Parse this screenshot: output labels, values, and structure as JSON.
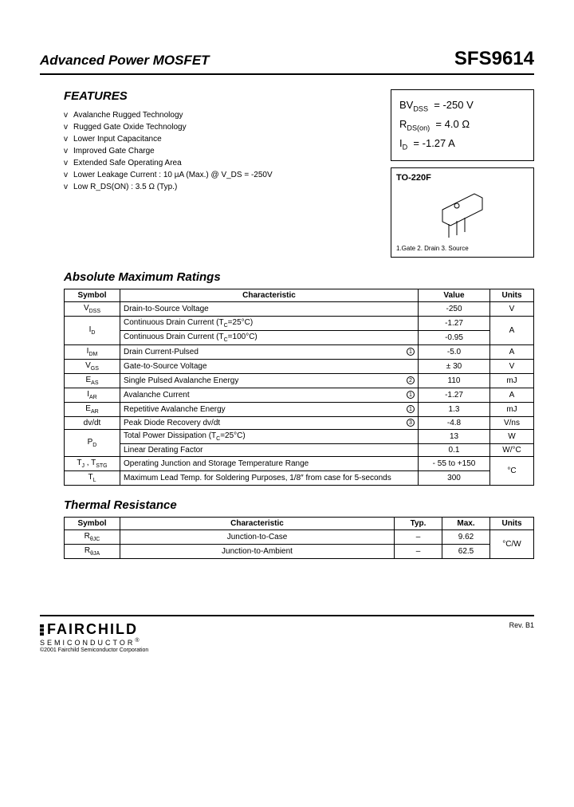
{
  "header": {
    "left": "Advanced Power MOSFET",
    "right": "SFS9614"
  },
  "features": {
    "title": "FEATURES",
    "bullet_glyph": "v",
    "items": [
      "Avalanche Rugged Technology",
      "Rugged Gate Oxide Technology",
      "Lower Input Capacitance",
      "Improved Gate Charge",
      "Extended Safe Operating Area",
      "Lower Leakage Current : 10 µA (Max.) @ V_DS = -250V",
      "Low R_DS(ON) : 3.5 Ω (Typ.)"
    ]
  },
  "spec_box": {
    "lines": [
      {
        "label_html": "BV<sub>DSS</sub>",
        "value": "= -250 V"
      },
      {
        "label_html": "R<sub>DS(on)</sub>",
        "value": "= 4.0 Ω"
      },
      {
        "label_html": "I<sub>D</sub>",
        "value": "= -1.27 A"
      }
    ]
  },
  "package": {
    "name": "TO-220F",
    "pins": "1.Gate  2. Drain  3. Source"
  },
  "abs_max": {
    "title": "Absolute Maximum Ratings",
    "headers": [
      "Symbol",
      "Characteristic",
      "Value",
      "Units"
    ],
    "rows": [
      {
        "sym_html": "V<sub>DSS</sub>",
        "char": "Drain-to-Source Voltage",
        "val": "-250",
        "unit": "V"
      },
      {
        "sym_html": "I<sub>D</sub>",
        "rowspan_sym": 2,
        "char_html": "Continuous Drain Current (T<sub>C</sub>=25°C)",
        "val": "-1.27",
        "unit": "A",
        "rowspan_unit": 2
      },
      {
        "char_html": "Continuous Drain Current (T<sub>C</sub>=100°C)",
        "val": "-0.95"
      },
      {
        "sym_html": "I<sub>DM</sub>",
        "char": "Drain Current-Pulsed",
        "note": "1",
        "val": "-5.0",
        "unit": "A"
      },
      {
        "sym_html": "V<sub>GS</sub>",
        "char": "Gate-to-Source Voltage",
        "val": "± 30",
        "unit": "V"
      },
      {
        "sym_html": "E<sub>AS</sub>",
        "char": "Single Pulsed Avalanche Energy",
        "note": "2",
        "val": "110",
        "unit": "mJ"
      },
      {
        "sym_html": "I<sub>AR</sub>",
        "char": "Avalanche Current",
        "note": "1",
        "val": "-1.27",
        "unit": "A"
      },
      {
        "sym_html": "E<sub>AR</sub>",
        "char": "Repetitive Avalanche Energy",
        "note": "1",
        "val": "1.3",
        "unit": "mJ"
      },
      {
        "sym_html": "dv/dt",
        "char": "Peak Diode Recovery dv/dt",
        "note": "3",
        "val": "-4.8",
        "unit": "V/ns"
      },
      {
        "sym_html": "P<sub>D</sub>",
        "rowspan_sym": 2,
        "char_html": "Total Power Dissipation (T<sub>C</sub>=25°C)",
        "val": "13",
        "unit": "W"
      },
      {
        "char": "Linear Derating Factor",
        "val": "0.1",
        "unit_html": "W/°C"
      },
      {
        "sym_html": "T<sub>J</sub> , T<sub>STG</sub>",
        "char": "Operating Junction and Storage Temperature Range",
        "val": "- 55 to +150",
        "unit_html": "°C",
        "rowspan_unit": 2
      },
      {
        "sym_html": "T<sub>L</sub>",
        "char": "Maximum Lead Temp. for Soldering Purposes, 1/8″ from case for 5-seconds",
        "val": "300"
      }
    ]
  },
  "thermal": {
    "title": "Thermal Resistance",
    "headers": [
      "Symbol",
      "Characteristic",
      "Typ.",
      "Max.",
      "Units"
    ],
    "rows": [
      {
        "sym_html": "R<sub>θJC</sub>",
        "char": "Junction-to-Case",
        "typ": "–",
        "max": "9.62",
        "unit_html": "°C/W",
        "rowspan_unit": 2
      },
      {
        "sym_html": "R<sub>θJA</sub>",
        "char": "Junction-to-Ambient",
        "typ": "–",
        "max": "62.5"
      }
    ]
  },
  "footer": {
    "brand": "FAIRCHILD",
    "sub": "SEMICONDUCTOR",
    "copy": "©2001 Fairchild Semiconductor Corporation",
    "rev": "Rev. B1"
  }
}
